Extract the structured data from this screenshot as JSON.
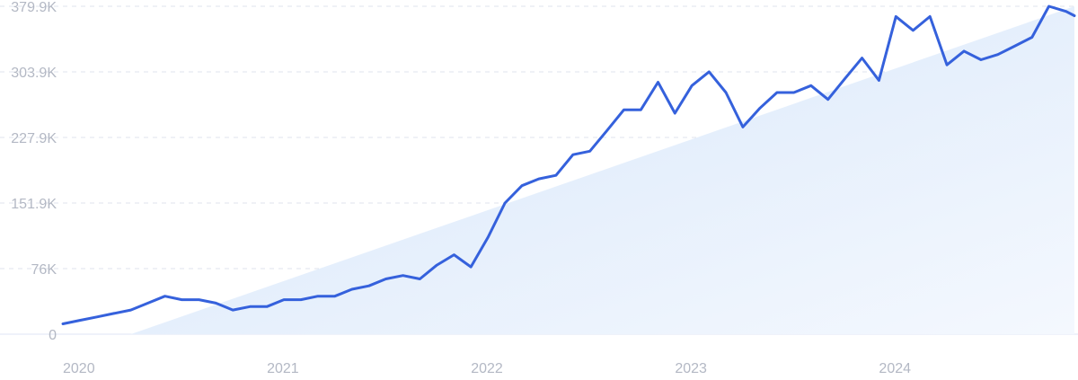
{
  "chart_data": {
    "type": "line",
    "title": "",
    "xlabel": "",
    "ylabel": "",
    "ylim": [
      0,
      379.9
    ],
    "y_ticks": [
      {
        "value": 0,
        "label": "0"
      },
      {
        "value": 76,
        "label": "76K"
      },
      {
        "value": 151.9,
        "label": "151.9K"
      },
      {
        "value": 227.9,
        "label": "227.9K"
      },
      {
        "value": 303.9,
        "label": "303.9K"
      },
      {
        "value": 379.9,
        "label": "379.9K"
      }
    ],
    "x_ticks": [
      {
        "value": 2020.0,
        "label": "2020"
      },
      {
        "value": 2021.0,
        "label": "2021"
      },
      {
        "value": 2022.0,
        "label": "2022"
      },
      {
        "value": 2023.0,
        "label": "2023"
      },
      {
        "value": 2024.0,
        "label": "2024"
      }
    ],
    "xlim": [
      2020.0,
      2024.958
    ],
    "grid": true,
    "series": [
      {
        "color": "#3561dc",
        "x": [
          2020.0,
          2020.083,
          2020.167,
          2020.25,
          2020.333,
          2020.417,
          2020.5,
          2020.583,
          2020.667,
          2020.75,
          2020.833,
          2020.917,
          2021.0,
          2021.083,
          2021.167,
          2021.25,
          2021.333,
          2021.417,
          2021.5,
          2021.583,
          2021.667,
          2021.75,
          2021.833,
          2021.917,
          2022.0,
          2022.083,
          2022.167,
          2022.25,
          2022.333,
          2022.417,
          2022.5,
          2022.583,
          2022.667,
          2022.75,
          2022.833,
          2022.917,
          2023.0,
          2023.083,
          2023.167,
          2023.25,
          2023.333,
          2023.417,
          2023.5,
          2023.583,
          2023.667,
          2023.75,
          2023.833,
          2023.917,
          2024.0,
          2024.083,
          2024.167,
          2024.25,
          2024.333,
          2024.417,
          2024.5,
          2024.583,
          2024.667,
          2024.75,
          2024.833,
          2024.917,
          2024.958
        ],
        "values": [
          12,
          16,
          20,
          24,
          28,
          36,
          44,
          40,
          40,
          36,
          28,
          32,
          32,
          40,
          40,
          44,
          44,
          52,
          56,
          64,
          68,
          64,
          80,
          92,
          78,
          112,
          152,
          172,
          180,
          184,
          208,
          212,
          236,
          260,
          260,
          292,
          256,
          288,
          304,
          280,
          240,
          262,
          280,
          280,
          288,
          272,
          296,
          320,
          294,
          368,
          352,
          368,
          312,
          328,
          318,
          324,
          334,
          344,
          379.9,
          374,
          369
        ]
      }
    ],
    "trend": {
      "color": "#dbe9fb",
      "start": [
        2020.333,
        0
      ],
      "end": [
        2024.958,
        379.9
      ]
    }
  }
}
